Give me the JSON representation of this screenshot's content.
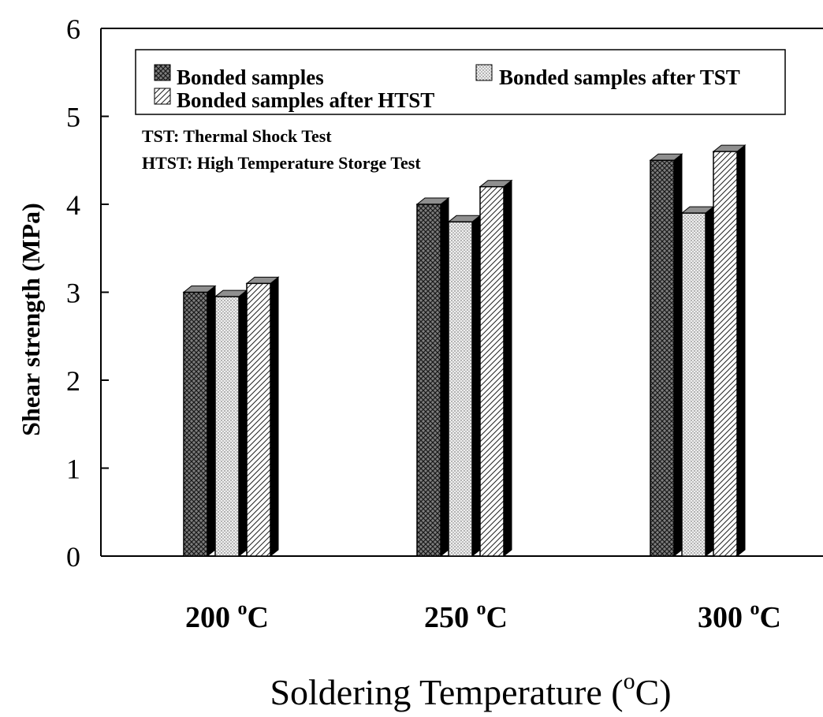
{
  "chart_data": {
    "type": "bar",
    "categories": [
      "200",
      "250",
      "300"
    ],
    "category_unit": "°C",
    "series": [
      {
        "name": "Bonded samples",
        "values": [
          3.0,
          4.0,
          4.5
        ]
      },
      {
        "name": "Bonded samples after TST",
        "values": [
          2.95,
          3.8,
          3.9
        ]
      },
      {
        "name": "Bonded samples after HTST",
        "values": [
          3.1,
          4.2,
          4.6
        ]
      }
    ],
    "xlabel_main": "Soldering Temperature (",
    "xlabel_sup": "o",
    "xlabel_end": "C)",
    "ylabel": "Shear strength (MPa)",
    "ylim": [
      0,
      6
    ],
    "yticks": [
      "0",
      "1",
      "2",
      "3",
      "4",
      "5",
      "6"
    ],
    "annotations": [
      "TST: Thermal Shock Test",
      "HTST: High Temperature Storge Test"
    ],
    "legend_position": "top",
    "grid": false,
    "colors": {
      "dark": "#8a8a8a",
      "light": "#d8d8d8",
      "hatch": "#ffffff",
      "edge": "#000000"
    }
  }
}
